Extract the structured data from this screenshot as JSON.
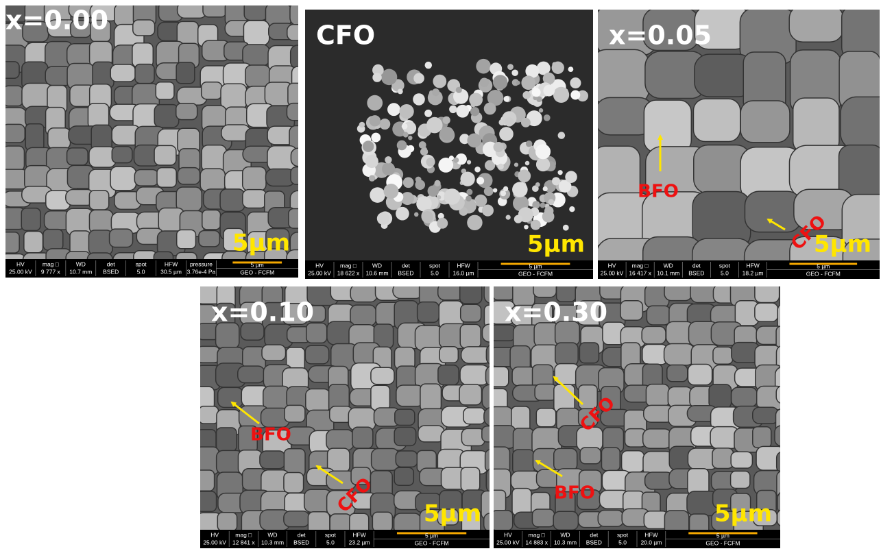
{
  "panels": [
    {
      "label": "x=0.00",
      "scale_text": "5µm",
      "bar_text": "5 µm",
      "footer": "GEO - FCFM",
      "headers": [
        "HV",
        "mag □",
        "WD",
        "det",
        "spot",
        "HFW",
        "pressure"
      ],
      "values": [
        "25.00 kV",
        "9 777 x",
        "10.7 mm",
        "BSED",
        "5.0",
        "30.5 µm",
        "3.76e-4 Pa"
      ],
      "annotations": []
    },
    {
      "label": "CFO",
      "scale_text": "5µm",
      "bar_text": "5 µm",
      "footer": "GEO - FCFM",
      "headers": [
        "HV",
        "mag □",
        "WD",
        "det",
        "spot",
        "HFW"
      ],
      "values": [
        "25.00 kV",
        "18 622 x",
        "10.6 mm",
        "BSED",
        "5.0",
        "16.0 µm"
      ],
      "annotations": []
    },
    {
      "label": "x=0.05",
      "scale_text": "5µm",
      "bar_text": "5 µm",
      "footer": "GEO - FCFM",
      "headers": [
        "HV",
        "mag □",
        "WD",
        "det",
        "spot",
        "HFW"
      ],
      "values": [
        "25.00 kV",
        "16 417 x",
        "10.1 mm",
        "BSED",
        "5.0",
        "18.2 µm"
      ],
      "annotations": [
        "BFO",
        "CFO"
      ]
    },
    {
      "label": "x=0.10",
      "scale_text": "5µm",
      "bar_text": "5 µm",
      "footer": "GEO - FCFM",
      "headers": [
        "HV",
        "mag □",
        "WD",
        "det",
        "spot",
        "HFW"
      ],
      "values": [
        "25.00 kV",
        "12 841 x",
        "10.3 mm",
        "BSED",
        "5.0",
        "23.2 µm"
      ],
      "annotations": [
        "BFO",
        "CFO"
      ]
    },
    {
      "label": "x=0.30",
      "scale_text": "5µm",
      "bar_text": "5 µm",
      "footer": "GEO - FCFM",
      "headers": [
        "HV",
        "mag □",
        "WD",
        "det",
        "spot",
        "HFW"
      ],
      "values": [
        "25.00 kV",
        "14 883 x",
        "10.3 mm",
        "BSED",
        "5.0",
        "20.0 µm"
      ],
      "annotations": [
        "CFO",
        "BFO"
      ]
    }
  ]
}
